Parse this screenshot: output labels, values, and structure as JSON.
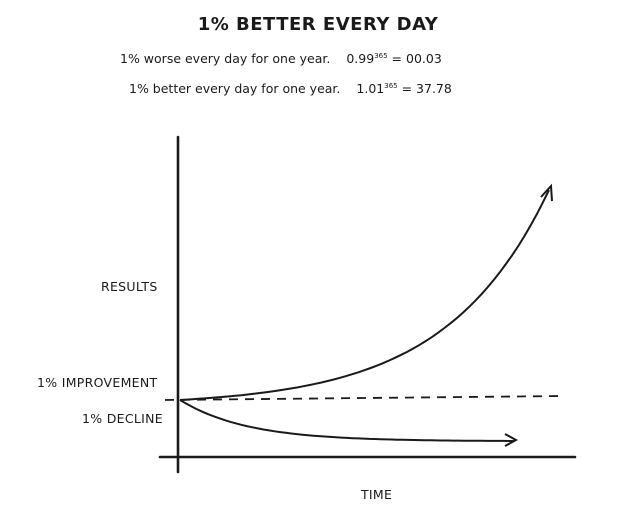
{
  "chart_data": {
    "type": "line",
    "title": "1% BETTER EVERY DAY",
    "annotations": [
      {
        "text": "1% worse every day for one year.",
        "base": "0.99",
        "exponent": "365",
        "result": "00.03"
      },
      {
        "text": "1% better every day for one year.",
        "base": "1.01",
        "exponent": "365",
        "result": "37.78"
      }
    ],
    "xlabel": "TIME",
    "ylabel": "RESULTS",
    "baseline_label_above": "1% IMPROVEMENT",
    "baseline_label_below": "1% DECLINE",
    "series": [
      {
        "name": "",
        "growth": 1.01
      },
      {
        "name": "",
        "growth": 0.99
      }
    ],
    "grid": false,
    "colors": {
      "ink": "#1a1a1a"
    }
  }
}
